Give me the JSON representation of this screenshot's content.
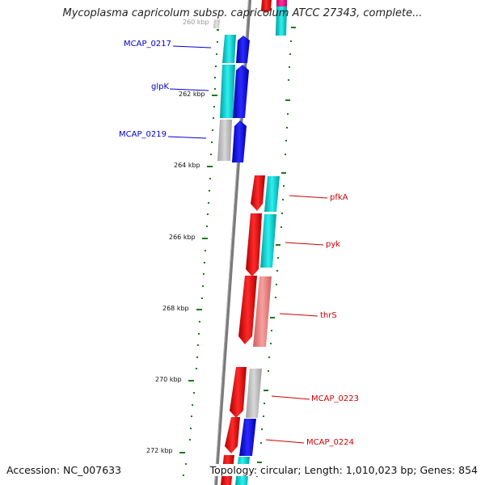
{
  "title": "Mycoplasma capricolum subsp. capricolum ATCC 27343, complete...",
  "accession": "Accession: NC_007633",
  "topology": "Topology: circular; Length: 1,010,023 bp; Genes: 854",
  "ticks": [
    "260 kbp",
    "262 kbp",
    "264 kbp",
    "266 kbp",
    "268 kbp",
    "270 kbp",
    "272 kbp"
  ],
  "genes_left": [
    {
      "label": "MCAP_0217",
      "color": "#0000cc"
    },
    {
      "label": "glpK",
      "color": "#0000cc"
    },
    {
      "label": "MCAP_0219",
      "color": "#0000cc"
    }
  ],
  "genes_right": [
    {
      "label": "pfkA",
      "color": "#cc0000"
    },
    {
      "label": "pyk",
      "color": "#cc0000"
    },
    {
      "label": "thrS",
      "color": "#cc0000"
    },
    {
      "label": "MCAP_0223",
      "color": "#cc0000"
    },
    {
      "label": "MCAP_0224",
      "color": "#cc0000"
    }
  ],
  "colors": {
    "backbone": "#808080",
    "forward_strand": "#0000ff",
    "reverse_strand": "#ff0000",
    "cog_cyan": "#00c8c8",
    "cog_gray": "#b4b4b4",
    "cog_pink": "#f08080",
    "tick": "#1a7a1a"
  }
}
